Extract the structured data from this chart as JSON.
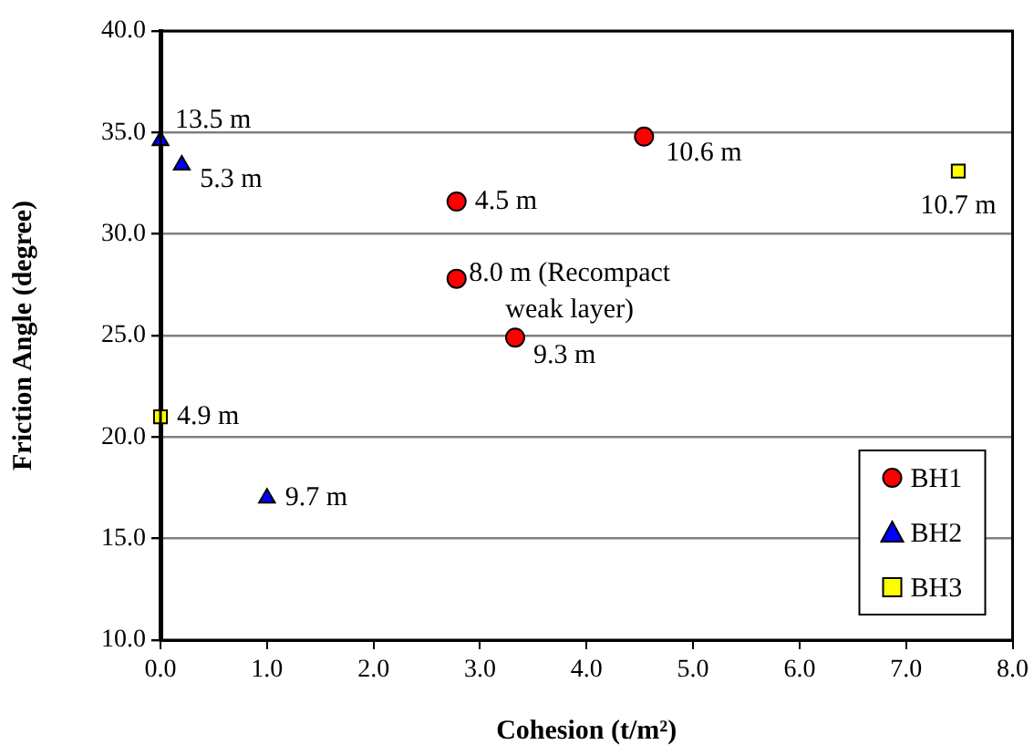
{
  "chart_data": {
    "type": "scatter",
    "xlabel": "Cohesion (t/m²)",
    "ylabel": "Friction Angle (degree)",
    "xlim": [
      0,
      8
    ],
    "ylim": [
      10,
      40
    ],
    "xticks": [
      {
        "value": 0,
        "label": "0.0"
      },
      {
        "value": 1,
        "label": "1.0"
      },
      {
        "value": 2,
        "label": "2.0"
      },
      {
        "value": 3,
        "label": "3.0"
      },
      {
        "value": 4,
        "label": "4.0"
      },
      {
        "value": 5,
        "label": "5.0"
      },
      {
        "value": 6,
        "label": "6.0"
      },
      {
        "value": 7,
        "label": "7.0"
      },
      {
        "value": 8,
        "label": "8.0"
      }
    ],
    "yticks": [
      {
        "value": 10,
        "label": "10.0"
      },
      {
        "value": 15,
        "label": "15.0"
      },
      {
        "value": 20,
        "label": "20.0"
      },
      {
        "value": 25,
        "label": "25.0"
      },
      {
        "value": 30,
        "label": "30.0"
      },
      {
        "value": 35,
        "label": "35.0"
      },
      {
        "value": 40,
        "label": "40.0"
      }
    ],
    "grid": "y",
    "legend": "bottom right",
    "series": [
      {
        "name": "BH1",
        "color": "#ff0000",
        "marker": "circle",
        "x": [
          4.54,
          2.78,
          2.78,
          3.33
        ],
        "values": [
          34.8,
          31.6,
          27.8,
          24.9
        ]
      },
      {
        "name": "BH2",
        "color": "#0000ff",
        "marker": "triangle",
        "x": [
          0.0,
          0.2,
          1.0
        ],
        "values": [
          34.6,
          33.4,
          17.0
        ]
      },
      {
        "name": "BH3",
        "color": "#ffff00",
        "marker": "square",
        "x": [
          0.0,
          7.49
        ],
        "values": [
          21.0,
          33.1
        ]
      }
    ],
    "annotations": [
      {
        "text": "10.6 m",
        "x": 4.54,
        "y": 34.8
      },
      {
        "text": "4.5 m",
        "x": 2.78,
        "y": 31.6
      },
      {
        "text": "8.0 m (Recompact\nweak layer)",
        "x": 2.78,
        "y": 27.8
      },
      {
        "text": "9.3 m",
        "x": 3.33,
        "y": 24.9
      },
      {
        "text": "13.5 m",
        "x": 0.0,
        "y": 34.6
      },
      {
        "text": "5.3 m",
        "x": 0.2,
        "y": 33.4
      },
      {
        "text": "9.7 m",
        "x": 1.0,
        "y": 17.0
      },
      {
        "text": "4.9 m",
        "x": 0.0,
        "y": 21.0
      },
      {
        "text": "10.7 m",
        "x": 7.49,
        "y": 33.1
      }
    ]
  }
}
